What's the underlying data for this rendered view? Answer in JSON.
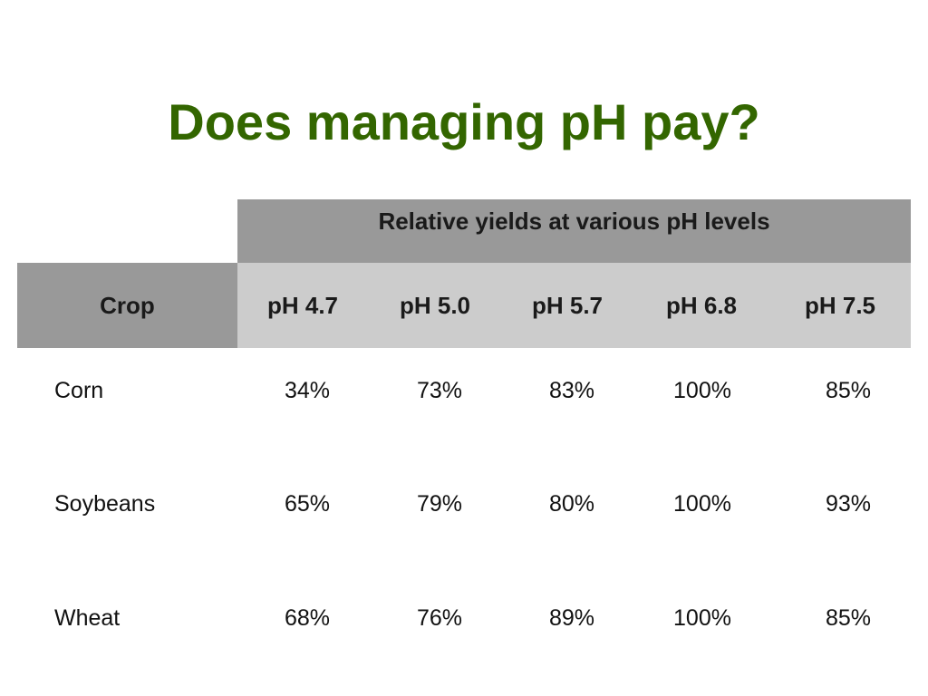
{
  "title": "Does managing pH pay?",
  "table": {
    "group_header": "Relative yields at various pH levels",
    "crop_header": "Crop",
    "ph_levels": [
      "pH 4.7",
      "pH 5.0",
      "pH 5.7",
      "pH 6.8",
      "pH 7.5"
    ],
    "rows": [
      {
        "crop": "Corn",
        "values": [
          "34%",
          "73%",
          "83%",
          "100%",
          "85%"
        ]
      },
      {
        "crop": "Soybeans",
        "values": [
          "65%",
          "79%",
          "80%",
          "100%",
          "93%"
        ]
      },
      {
        "crop": "Wheat",
        "values": [
          "68%",
          "76%",
          "89%",
          "100%",
          "85%"
        ]
      }
    ]
  },
  "colors": {
    "title": "#336600",
    "header_dark": "#999999",
    "header_light": "#cccccc"
  }
}
